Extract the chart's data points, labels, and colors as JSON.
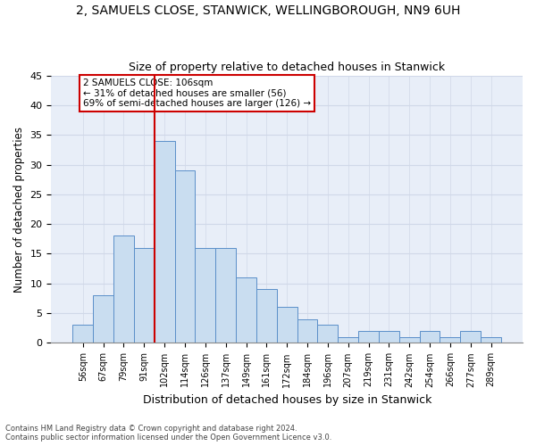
{
  "title1": "2, SAMUELS CLOSE, STANWICK, WELLINGBOROUGH, NN9 6UH",
  "title2": "Size of property relative to detached houses in Stanwick",
  "xlabel": "Distribution of detached houses by size in Stanwick",
  "ylabel": "Number of detached properties",
  "bar_values": [
    3,
    8,
    18,
    16,
    34,
    29,
    16,
    16,
    11,
    9,
    6,
    4,
    3,
    1,
    2,
    2,
    1,
    2,
    1,
    2,
    1
  ],
  "bar_labels": [
    "56sqm",
    "67sqm",
    "79sqm",
    "91sqm",
    "102sqm",
    "114sqm",
    "126sqm",
    "137sqm",
    "149sqm",
    "161sqm",
    "172sqm",
    "184sqm",
    "196sqm",
    "207sqm",
    "219sqm",
    "231sqm",
    "242sqm",
    "254sqm",
    "266sqm",
    "277sqm",
    "289sqm"
  ],
  "bar_color": "#c9ddf0",
  "bar_edgecolor": "#5b8fc9",
  "grid_color": "#d0d8e8",
  "vline_color": "#cc0000",
  "annotation_text": "2 SAMUELS CLOSE: 106sqm\n← 31% of detached houses are smaller (56)\n69% of semi-detached houses are larger (126) →",
  "annotation_box_edgecolor": "#cc0000",
  "annotation_box_facecolor": "#ffffff",
  "footer1": "Contains HM Land Registry data © Crown copyright and database right 2024.",
  "footer2": "Contains public sector information licensed under the Open Government Licence v3.0.",
  "ylim": [
    0,
    45
  ],
  "yticks": [
    0,
    5,
    10,
    15,
    20,
    25,
    30,
    35,
    40,
    45
  ],
  "background_color": "#e8eef8",
  "fig_background": "#ffffff",
  "title1_fontsize": 10,
  "title2_fontsize": 9
}
